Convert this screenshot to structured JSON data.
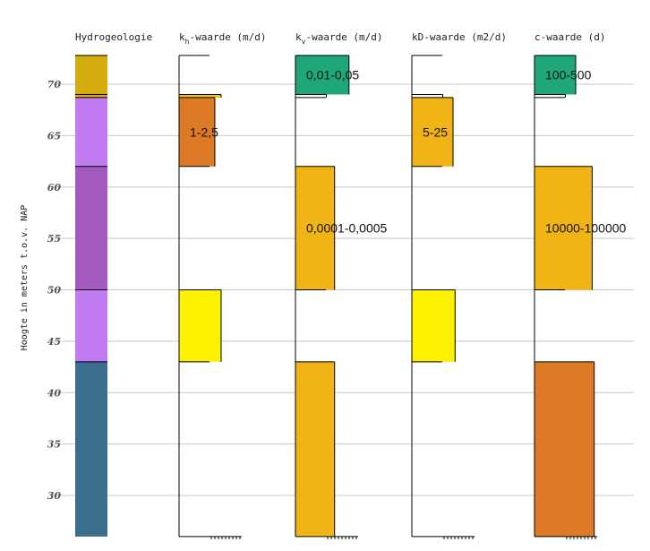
{
  "chart_data": {
    "type": "bar",
    "ylabel": "Hoogte in meters t.o.v. NAP",
    "ylim": [
      26,
      73
    ],
    "yticks": [
      30,
      35,
      40,
      45,
      50,
      55,
      60,
      65,
      70
    ],
    "grid": true,
    "columns": [
      {
        "name": "hydro",
        "header": "Hydrogeologie",
        "header_sub": "",
        "header_rest": "",
        "layers": [
          {
            "top": 72.8,
            "bottom": 69.0,
            "value": 0,
            "color": "#D4AC0D",
            "label": ""
          },
          {
            "top": 69.0,
            "bottom": 68.7,
            "value": 0,
            "color": "#D4AC0D",
            "label": ""
          },
          {
            "top": 68.7,
            "bottom": 62.0,
            "value": 0,
            "color": "#C07CF0",
            "label": ""
          },
          {
            "top": 62.0,
            "bottom": 50.0,
            "value": 0,
            "color": "#A259C0",
            "label": ""
          },
          {
            "top": 50.0,
            "bottom": 43.0,
            "value": 0,
            "color": "#C07CF0",
            "label": ""
          },
          {
            "top": 43.0,
            "bottom": 26.0,
            "value": 0,
            "color": "#3B6E8C",
            "label": ""
          }
        ]
      },
      {
        "name": "kh",
        "header": "k",
        "header_sub": "h",
        "header_rest": "-waarde (m/d)",
        "layers": [
          {
            "top": 72.8,
            "bottom": 69.0,
            "value": 0.0,
            "color": "#ffffff",
            "label": ""
          },
          {
            "top": 69.0,
            "bottom": 68.7,
            "value": 1.0,
            "color": "#F1C40F",
            "label": ""
          },
          {
            "top": 68.7,
            "bottom": 62.0,
            "value": 0.85,
            "color": "#DC7A26",
            "label": "1-2,5"
          },
          {
            "top": 62.0,
            "bottom": 50.0,
            "value": 0.0,
            "color": "#ffffff",
            "label": ""
          },
          {
            "top": 50.0,
            "bottom": 43.0,
            "value": 1.0,
            "color": "#FCF200",
            "label": ""
          },
          {
            "top": 43.0,
            "bottom": 26.0,
            "value": 0.0,
            "color": "#ffffff",
            "label": ""
          }
        ]
      },
      {
        "name": "kv",
        "header": "k",
        "header_sub": "v",
        "header_rest": "-waarde (m/d)",
        "layers": [
          {
            "top": 72.8,
            "bottom": 69.0,
            "value": 1.3,
            "color": "#1EA87A",
            "label": "0,01-0,05"
          },
          {
            "top": 69.0,
            "bottom": 68.7,
            "value": 0.75,
            "color": "#ffffff",
            "label": ""
          },
          {
            "top": 68.7,
            "bottom": 62.0,
            "value": 0.0,
            "color": "#ffffff",
            "label": ""
          },
          {
            "top": 62.0,
            "bottom": 50.0,
            "value": 0.95,
            "color": "#F0B417",
            "label": "0,0001-0,0005"
          },
          {
            "top": 50.0,
            "bottom": 43.0,
            "value": 0.0,
            "color": "#ffffff",
            "label": ""
          },
          {
            "top": 43.0,
            "bottom": 26.0,
            "value": 0.95,
            "color": "#F0B417",
            "label": ""
          }
        ]
      },
      {
        "name": "kD",
        "header": "kD-waarde (m2/d)",
        "header_sub": "",
        "header_rest": "",
        "layers": [
          {
            "top": 72.8,
            "bottom": 69.0,
            "value": 0.0,
            "color": "#ffffff",
            "label": ""
          },
          {
            "top": 69.0,
            "bottom": 68.7,
            "value": 0.75,
            "color": "#ffffff",
            "label": ""
          },
          {
            "top": 68.7,
            "bottom": 62.0,
            "value": 1.0,
            "color": "#F0B417",
            "label": "5-25"
          },
          {
            "top": 62.0,
            "bottom": 50.0,
            "value": 0.0,
            "color": "#ffffff",
            "label": ""
          },
          {
            "top": 50.0,
            "bottom": 43.0,
            "value": 1.05,
            "color": "#FCF200",
            "label": ""
          },
          {
            "top": 43.0,
            "bottom": 26.0,
            "value": 0.0,
            "color": "#ffffff",
            "label": ""
          }
        ]
      },
      {
        "name": "c",
        "header": "c-waarde (d)",
        "header_sub": "",
        "header_rest": "",
        "layers": [
          {
            "top": 72.8,
            "bottom": 69.0,
            "value": 1.0,
            "color": "#1EA87A",
            "label": "100-500"
          },
          {
            "top": 69.0,
            "bottom": 68.7,
            "value": 0.75,
            "color": "#ffffff",
            "label": ""
          },
          {
            "top": 68.7,
            "bottom": 62.0,
            "value": 0.0,
            "color": "#ffffff",
            "label": ""
          },
          {
            "top": 62.0,
            "bottom": 50.0,
            "value": 1.4,
            "color": "#F0B417",
            "label": "10000-100000"
          },
          {
            "top": 50.0,
            "bottom": 43.0,
            "value": 0.0,
            "color": "#ffffff",
            "label": ""
          },
          {
            "top": 43.0,
            "bottom": 26.0,
            "value": 1.45,
            "color": "#DC7A26",
            "label": ""
          }
        ]
      }
    ]
  }
}
